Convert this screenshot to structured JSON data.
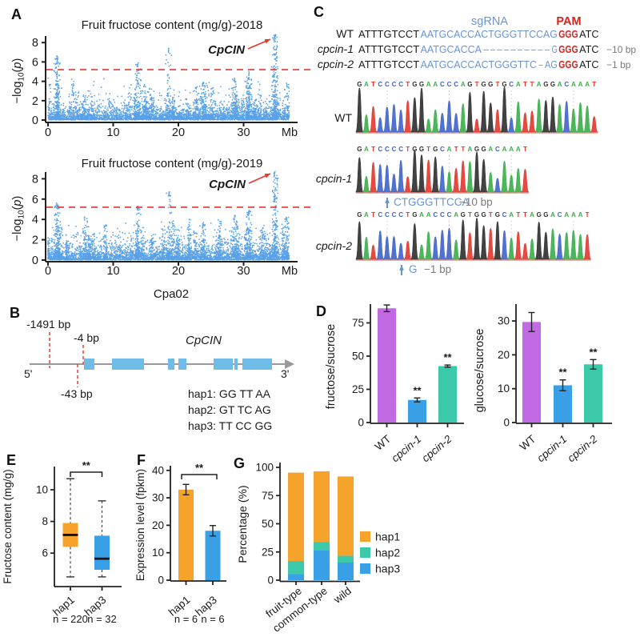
{
  "panel_labels": [
    "A",
    "B",
    "C",
    "D",
    "E",
    "F",
    "G"
  ],
  "colors": {
    "point": "#58A1E8",
    "red": "#E4372D",
    "purple": "#C16AE4",
    "blue": "#3AA0E6",
    "teal": "#3CC9A9",
    "orange": "#F5A32B",
    "exon": "#6FBCE9",
    "seqBlue": "#6A93D4",
    "seqRed": "#D6231E",
    "dash": "#9AA4B0",
    "gray": "#7a7a7a",
    "black": "#1a1a1a",
    "baseA": "#3AAE49",
    "baseC": "#3E63C8",
    "baseG": "#2e2e2e",
    "baseT": "#E2362C"
  },
  "chart_data": [
    {
      "id": "manhattan-2018",
      "type": "scatter",
      "title": "Fruit fructose content (mg/g)-2018",
      "ylabel_parts": [
        "−log",
        "10",
        "p"
      ],
      "yticks": [
        0,
        2,
        4,
        6,
        8
      ],
      "ylim": [
        0,
        9
      ],
      "xticks": [
        0,
        10,
        20,
        30
      ],
      "x_unit": "Mb",
      "xmax": 37,
      "threshold": 5.2,
      "annotation": "CpCIN",
      "seed": 11,
      "peaks": [
        [
          1.4,
          6.6,
          230
        ],
        [
          13.8,
          5.9,
          110
        ],
        [
          18.5,
          7.4,
          80
        ],
        [
          23.8,
          3.9,
          70
        ],
        [
          28.6,
          4.3,
          110
        ],
        [
          30.8,
          5.0,
          130
        ],
        [
          34.8,
          8.8,
          240
        ],
        [
          36.6,
          3.8,
          60
        ]
      ]
    },
    {
      "id": "manhattan-2019",
      "type": "scatter",
      "title": "Fruit fructose content (mg/g)-2019",
      "ylabel_parts": [
        "−log",
        "10",
        "p"
      ],
      "yticks": [
        0,
        2,
        4,
        6,
        8
      ],
      "ylim": [
        0,
        9
      ],
      "xticks": [
        0,
        10,
        20,
        30
      ],
      "x_unit": "Mb",
      "xmax": 37,
      "xlabel": "Cpa02",
      "threshold": 5.2,
      "annotation": "CpCIN",
      "seed": 23,
      "peaks": [
        [
          1.4,
          5.6,
          230
        ],
        [
          13.8,
          5.3,
          110
        ],
        [
          18.6,
          6.7,
          80
        ],
        [
          23.8,
          3.7,
          70
        ],
        [
          28.6,
          4.4,
          110
        ],
        [
          30.8,
          4.9,
          130
        ],
        [
          34.8,
          8.7,
          240
        ],
        [
          36.6,
          4.2,
          60
        ]
      ]
    },
    {
      "id": "bar-fructose-sucrose",
      "type": "bar",
      "ylabel": "fructose/sucrose",
      "yticks": [
        0,
        25,
        50,
        75
      ],
      "ylim": [
        0,
        90
      ],
      "categories": [
        "WT",
        "cpcin-1",
        "cpcin-2"
      ],
      "italics": [
        false,
        true,
        true
      ],
      "values": [
        86,
        17,
        42.5
      ],
      "errors": [
        2.5,
        1.5,
        0.8
      ],
      "sig": [
        "",
        "**",
        "**"
      ],
      "bar_colors": [
        "purple",
        "blue",
        "teal"
      ]
    },
    {
      "id": "bar-glucose-sucrose",
      "type": "bar",
      "ylabel": "glucose/sucrose",
      "yticks": [
        0,
        10,
        20,
        30
      ],
      "ylim": [
        0,
        35
      ],
      "categories": [
        "WT",
        "cpcin-1",
        "cpcin-2"
      ],
      "italics": [
        false,
        true,
        true
      ],
      "values": [
        29.7,
        11,
        17.2
      ],
      "errors": [
        2.8,
        1.6,
        1.4
      ],
      "sig": [
        "",
        "**",
        "**"
      ],
      "bar_colors": [
        "purple",
        "blue",
        "teal"
      ]
    },
    {
      "id": "box-fructose-content",
      "type": "box",
      "ylabel": "Fructose content (mg/g)",
      "yticks": [
        6,
        8,
        10
      ],
      "ylim": [
        4.2,
        11.4
      ],
      "sig": "**",
      "groups": [
        {
          "label": "hap1",
          "n": "n = 220",
          "color": "orange",
          "low": 4.5,
          "q1": 6.4,
          "med": 7.15,
          "q3": 7.9,
          "high": 10.7
        },
        {
          "label": "hap3",
          "n": "n = 32",
          "color": "blue",
          "low": 4.5,
          "q1": 4.95,
          "med": 5.65,
          "q3": 7.1,
          "high": 9.3
        }
      ]
    },
    {
      "id": "bar-expression",
      "type": "bar",
      "ylabel": "Expression level (fpkm)",
      "yticks": [
        0,
        10,
        20,
        30,
        40
      ],
      "ylim": [
        0,
        42
      ],
      "categories": [
        "hap1",
        "hap3"
      ],
      "italics": [
        false,
        false
      ],
      "values": [
        33,
        18
      ],
      "errors": [
        1.9,
        1.9
      ],
      "sig_bracket": "**",
      "ns": [
        "n = 6",
        "n = 6"
      ],
      "bar_colors": [
        "orange",
        "blue"
      ]
    },
    {
      "id": "stacked-percentage",
      "type": "bar",
      "stacked": true,
      "ylabel": "Percentage (%)",
      "yticks": [
        0,
        25,
        50,
        75,
        100
      ],
      "ylim": [
        0,
        100
      ],
      "categories": [
        "fruit-type",
        "common-type",
        "wild"
      ],
      "series": [
        {
          "name": "hap3",
          "color": "blue",
          "values": [
            5.3,
            26.7,
            15.6
          ]
        },
        {
          "name": "hap2",
          "color": "teal",
          "values": [
            11.7,
            7.0,
            6.0
          ]
        },
        {
          "name": "hap1",
          "color": "orange",
          "values": [
            78.3,
            62.8,
            70.3
          ]
        }
      ],
      "legend": [
        "hap1",
        "hap2",
        "hap3"
      ]
    }
  ],
  "gene": {
    "name": "CpCIN",
    "five_prime": "5'",
    "three_prime": "3'",
    "markers": [
      {
        "label": "-1491 bp",
        "text_x": 33,
        "text_y": 27,
        "line_x": 62,
        "y1": 32,
        "y2": 77
      },
      {
        "label": "-4 bp",
        "text_x": 92,
        "text_y": 44,
        "line_x": 104,
        "y1": 48,
        "y2": 72
      },
      {
        "label": "-43 bp",
        "text_x": 76,
        "text_y": 114,
        "line_x": 97,
        "y1": 72,
        "y2": 101
      }
    ],
    "exons": [
      [
        105,
        13
      ],
      [
        140,
        40
      ],
      [
        210,
        8
      ],
      [
        223,
        10
      ],
      [
        267,
        24
      ],
      [
        293,
        4
      ],
      [
        303,
        37
      ]
    ],
    "haplotypes": [
      "hap1: GG TT AA",
      "hap2: GT TC AG",
      "hap3: TT CC GG"
    ]
  },
  "crispr": {
    "sgRNA_label": "sgRNA",
    "pam_label": "PAM",
    "alignment": [
      {
        "label": "WT",
        "italic": false,
        "note": "",
        "segments": [
          {
            "t": "ATTTGTCCT",
            "c": "black"
          },
          {
            "t": "AATGCACCACTGGGTTCCAG",
            "c": "seqBlue"
          },
          {
            "t": "GGG",
            "c": "seqRed",
            "b": true
          },
          {
            "t": "ATC",
            "c": "black"
          }
        ]
      },
      {
        "label": "cpcin-1",
        "italic": true,
        "note": "−10 bp",
        "segments": [
          {
            "t": "ATTTGTCCT",
            "c": "black"
          },
          {
            "t": "AATGCACCA",
            "c": "seqBlue"
          },
          {
            "t": "----------",
            "c": "dash"
          },
          {
            "t": "G",
            "c": "seqBlue"
          },
          {
            "t": "GGG",
            "c": "seqRed",
            "b": true
          },
          {
            "t": "ATC",
            "c": "black"
          }
        ]
      },
      {
        "label": "cpcin-2",
        "italic": true,
        "note": "−1 bp",
        "segments": [
          {
            "t": "ATTTGTCCT",
            "c": "black"
          },
          {
            "t": "AATGCACCACTGGGTTC",
            "c": "seqBlue"
          },
          {
            "t": "-",
            "c": "dash"
          },
          {
            "t": "AG",
            "c": "seqBlue"
          },
          {
            "t": "GGG",
            "c": "seqRed",
            "b": true
          },
          {
            "t": "ATC",
            "c": "black"
          }
        ]
      }
    ],
    "chromatograms": [
      {
        "label": "WT",
        "italic": false,
        "seq": "GATCCCCTGGAACCCAGTGGTGCATTAGGACAAAT",
        "seed": 5,
        "annotation": null
      },
      {
        "label": "cpcin-1",
        "italic": true,
        "seq": "GATCCCCTGGTGCATTAGGACAAAT",
        "seed": 9,
        "annotation": {
          "insert": "CTGGGTTCCA",
          "note": "−10 bp"
        }
      },
      {
        "label": "cpcin-2",
        "italic": true,
        "seq": "GATCCCCTGAACCCAGTGGTGCATTAGGACAAAT",
        "seed": 3,
        "annotation": {
          "insert": "G",
          "note": "−1 bp"
        }
      }
    ]
  }
}
